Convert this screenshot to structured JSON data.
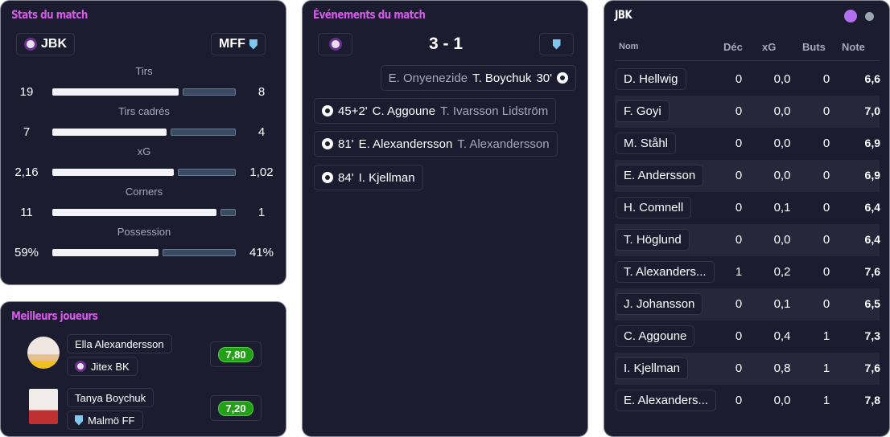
{
  "stats": {
    "title": "Stats du match",
    "home": "JBK",
    "away": "MFF",
    "rows": [
      {
        "label": "Tirs",
        "home": "19",
        "away": "8",
        "h": 19,
        "a": 8
      },
      {
        "label": "Tirs cadrés",
        "home": "7",
        "away": "4",
        "h": 7,
        "a": 4
      },
      {
        "label": "xG",
        "home": "2,16",
        "away": "1,02",
        "h": 2.16,
        "a": 1.02
      },
      {
        "label": "Corners",
        "home": "11",
        "away": "1",
        "h": 11,
        "a": 1
      },
      {
        "label": "Possession",
        "home": "59%",
        "away": "41%",
        "h": 59,
        "a": 41
      }
    ]
  },
  "best": {
    "title": "Meilleurs joueurs",
    "players": [
      {
        "name": "Ella Alexandersson",
        "team": "Jitex BK",
        "rating": "7,80"
      },
      {
        "name": "Tanya Boychuk",
        "team": "Malmö FF",
        "rating": "7,20"
      }
    ]
  },
  "events": {
    "title": "Événements du match",
    "score": "3 - 1",
    "away": [
      {
        "assist": "E. Onyenezide",
        "scorer": "T. Boychuk",
        "minute": "30'"
      }
    ],
    "home": [
      {
        "minute": "45+2'",
        "scorer": "C. Aggoune",
        "assist": "T. Ivarsson Lidström"
      },
      {
        "minute": "81'",
        "scorer": "E. Alexandersson",
        "assist": "T. Alexandersson"
      },
      {
        "minute": "84'",
        "scorer": "I. Kjellman",
        "assist": ""
      }
    ]
  },
  "lineup": {
    "title": "JBK",
    "headers": {
      "name": "Nom",
      "dec": "Déc",
      "xg": "xG",
      "goals": "Buts",
      "rating": "Note"
    },
    "colors": {
      "home": "#b070f0",
      "away": "#9aa8ac"
    },
    "rows": [
      {
        "name": "D. Hellwig",
        "dec": "0",
        "xg": "0,0",
        "goals": "0",
        "rating": "6,6"
      },
      {
        "name": "F. Goyi",
        "dec": "0",
        "xg": "0,0",
        "goals": "0",
        "rating": "7,0"
      },
      {
        "name": "M. Ståhl",
        "dec": "0",
        "xg": "0,0",
        "goals": "0",
        "rating": "6,9"
      },
      {
        "name": "E. Andersson",
        "dec": "0",
        "xg": "0,0",
        "goals": "0",
        "rating": "6,9"
      },
      {
        "name": "H. Comnell",
        "dec": "0",
        "xg": "0,1",
        "goals": "0",
        "rating": "6,4"
      },
      {
        "name": "T. Höglund",
        "dec": "0",
        "xg": "0,0",
        "goals": "0",
        "rating": "6,4"
      },
      {
        "name": "T. Alexanders...",
        "dec": "1",
        "xg": "0,2",
        "goals": "0",
        "rating": "7,6"
      },
      {
        "name": "J. Johansson",
        "dec": "0",
        "xg": "0,1",
        "goals": "0",
        "rating": "6,5"
      },
      {
        "name": "C. Aggoune",
        "dec": "0",
        "xg": "0,4",
        "goals": "1",
        "rating": "7,3"
      },
      {
        "name": "I. Kjellman",
        "dec": "0",
        "xg": "0,8",
        "goals": "1",
        "rating": "7,6"
      },
      {
        "name": "E. Alexanders...",
        "dec": "0",
        "xg": "0,0",
        "goals": "1",
        "rating": "7,8"
      }
    ]
  }
}
